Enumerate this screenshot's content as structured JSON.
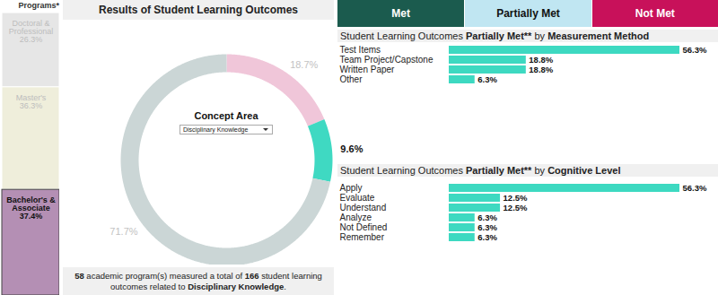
{
  "buttons": [
    {
      "label": "Met",
      "color": "#1b5b4e"
    },
    {
      "label": "Partially Met",
      "color": "#c0e6f2"
    },
    {
      "label": "Not Met",
      "color": "#c8115a"
    }
  ],
  "caption": [
    {
      "text": "58",
      "bold": true
    },
    {
      "text": " academic program(s) measured a total of ",
      "bold": false
    },
    {
      "text": "166",
      "bold": true
    },
    {
      "text": " student learning outcomes related to ",
      "bold": false
    },
    {
      "text": "Disciplinary Knowledge",
      "bold": true
    },
    {
      "text": ".",
      "bold": false
    }
  ],
  "chart_data": [
    {
      "type": "bar",
      "title": "Programs*",
      "stacked": true,
      "tick_labels": false,
      "data_labels": true,
      "categories": [
        null
      ],
      "series": [
        {
          "name": "Doctoral & Professional",
          "color": "#e6e6e6",
          "values": [
            26.3
          ],
          "value_labels": [
            "26.3%"
          ]
        },
        {
          "name": "Master's",
          "color": "#efeedb",
          "values": [
            36.3
          ],
          "value_labels": [
            "36.3%"
          ]
        },
        {
          "name": "Bachelor's & Associate",
          "color": "#b48fb4",
          "values": [
            37.4
          ],
          "value_labels": [
            "37.4%"
          ]
        }
      ]
    },
    {
      "type": "pie",
      "title": "Results of Student Learning Outcomes",
      "subtitle": "Concept Area",
      "annotations": [
        "Disciplinary Knowledge"
      ],
      "data_labels": true,
      "categories": [
        "Not Met",
        "Partially Met",
        "Met"
      ],
      "values": [
        18.7,
        9.6,
        71.7
      ],
      "value_labels": [
        "18.7%",
        "9.6%",
        "71.7%"
      ],
      "colors": [
        "#f0c6d9",
        "#3fd9c2",
        "#cbd6d6"
      ]
    },
    {
      "type": "bar",
      "orientation": "horizontal",
      "tick_labels": "y",
      "data_labels": true,
      "title": "Student Learning Outcomes Partially Met** by Measurement Method",
      "categories": [
        "Test Items",
        "Team Project/Capstone",
        "Written Paper",
        "Other"
      ],
      "values": [
        56.3,
        18.8,
        18.8,
        6.3
      ],
      "value_labels": [
        "56.3%",
        "18.8%",
        "18.8%",
        "6.3%"
      ],
      "color": "#3dd9c1"
    },
    {
      "type": "bar",
      "orientation": "horizontal",
      "tick_labels": "y",
      "data_labels": true,
      "title": "Student Learning Outcomes Partially Met** by Cognitive Level",
      "categories": [
        "Apply",
        "Evaluate",
        "Understand",
        "Analyze",
        "Not Defined",
        "Remember"
      ],
      "values": [
        56.3,
        12.5,
        12.5,
        6.3,
        6.3,
        6.3
      ],
      "value_labels": [
        "56.3%",
        "12.5%",
        "12.5%",
        "6.3%",
        "6.3%",
        "6.3%"
      ],
      "color": "#3dd9c1"
    }
  ]
}
